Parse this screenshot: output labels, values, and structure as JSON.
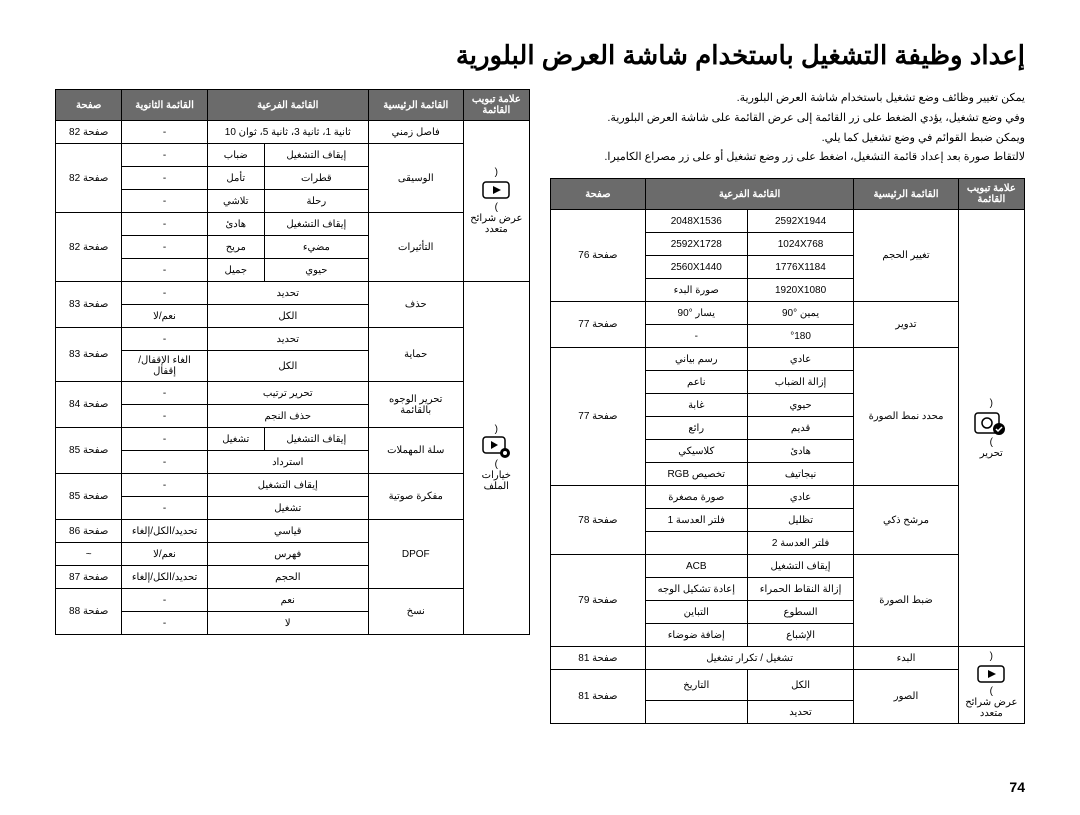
{
  "title": "إعداد وظيفة التشغيل باستخدام شاشة العرض البلورية",
  "intro": [
    "يمكن تغيير وظائف وضع تشغيل باستخدام شاشة العرض البلورية.",
    "وفي وضع تشغيل، يؤدي الضغط على زر القائمة إلى عرض القائمة على شاشة العرض البلورية.",
    "ويمكن ضبط القوائم في وضع تشغيل كما يلي.",
    "لالتقاط صورة بعد إعداد قائمة التشغيل، اضغط على زر وضع تشغيل أو على زر مصراع الكاميرا."
  ],
  "headers": {
    "tab": "علامة تبويب القائمة",
    "main": "القائمة الرئيسية",
    "sub": "القائمة الفرعية",
    "sec": "القائمة الثانوية",
    "page": "صفحة"
  },
  "rightTable": {
    "rows": [
      [
        "",
        "تغيير الحجم",
        "2592X1944",
        "2048X1536",
        ""
      ],
      [
        "",
        "",
        "1024X768",
        "2592X1728",
        ""
      ],
      [
        "",
        "",
        "1776X1184",
        "2560X1440",
        "صفحة 76"
      ],
      [
        "",
        "",
        "1920X1080",
        "صورة البدء",
        ""
      ],
      [
        "",
        "تدوير",
        "يمين °90",
        "يسار °90",
        "صفحة 77"
      ],
      [
        "",
        "",
        "°180",
        "-",
        ""
      ],
      [
        "تحرير",
        "محدد نمط الصورة",
        "عادي",
        "رسم بياني",
        ""
      ],
      [
        "",
        "",
        "إزالة الضباب",
        "ناعم",
        ""
      ],
      [
        "",
        "",
        "حيوي",
        "غابة",
        ""
      ],
      [
        "",
        "",
        "قديم",
        "رائع",
        "صفحة 77"
      ],
      [
        "",
        "",
        "هادئ",
        "كلاسيكي",
        ""
      ],
      [
        "",
        "",
        "نيجاتيف",
        "تخصيص RGB",
        ""
      ],
      [
        "",
        "مرشح ذكي",
        "عادي",
        "صورة مصغرة",
        ""
      ],
      [
        "",
        "",
        "تظليل",
        "فلتر العدسة 1",
        "صفحة 78"
      ],
      [
        "",
        "",
        "فلتر العدسة 2",
        "",
        ""
      ],
      [
        "",
        "ضبط الصورة",
        "إيقاف التشغيل",
        "ACB",
        ""
      ],
      [
        "",
        "",
        "إزالة النقاط الحمراء",
        "إعادة تشكيل الوجه",
        "صفحة 79"
      ],
      [
        "",
        "",
        "السطوع",
        "التباين",
        ""
      ],
      [
        "",
        "",
        "الإشباع",
        "إضافة ضوضاء",
        ""
      ],
      [
        "عرض شرائح متعدد",
        "البدء",
        "تشغيل / تكرار تشغيل",
        "-",
        "صفحة 81"
      ],
      [
        "",
        "الصور",
        "الكل",
        "التاريخ",
        "صفحة 81"
      ],
      [
        "",
        "",
        "تحديد",
        "",
        ""
      ]
    ]
  },
  "leftTable": {
    "rows": [
      [
        "",
        "فاصل زمني",
        "ثانية 1، ثانية 3، ثانية 5، ثوان 10",
        "-",
        "صفحة 82"
      ],
      [
        "",
        "",
        "إيقاف التشغيل",
        "ضباب",
        "-"
      ],
      [
        "عرض شرائح متعدد",
        "الوسيقى",
        "قطرات",
        "تأمل",
        "-"
      ],
      [
        "",
        "",
        "رحلة",
        "تلاشي",
        "-"
      ],
      [
        "",
        "",
        "إيقاف التشغيل",
        "هادئ",
        "-"
      ],
      [
        "",
        "التأثيرات",
        "مضيء",
        "مريح",
        "-"
      ],
      [
        "",
        "",
        "حيوي",
        "جميل",
        "-"
      ],
      [
        "",
        "حذف",
        "تحديد",
        "-",
        "صفحة 83"
      ],
      [
        "",
        "",
        "الكل",
        "نعم/لا",
        ""
      ],
      [
        "",
        "حماية",
        "تحديد",
        "-",
        "صفحة 83"
      ],
      [
        "",
        "",
        "الكل",
        "الغاء الإقفال/إقفال",
        ""
      ],
      [
        "خيارات الملف",
        "تحرير الوجوه بالقائمة",
        "تحرير ترتيب",
        "-",
        "صفحة 84"
      ],
      [
        "",
        "",
        "حذف النجم",
        "-",
        ""
      ],
      [
        "",
        "سلة المهملات",
        "إيقاف التشغيل",
        "تشغيل",
        "-"
      ],
      [
        "",
        "",
        "استرداد",
        "-",
        "صفحة 85"
      ],
      [
        "",
        "مفكرة صوتية",
        "إيقاف التشغيل",
        "-",
        "صفحة 85"
      ],
      [
        "",
        "",
        "تشغيل",
        "-",
        ""
      ],
      [
        "",
        "",
        "قياسي",
        "تحديد/الكل/إلغاء",
        "صفحة 86"
      ],
      [
        "",
        "DPOF",
        "فهرس",
        "نعم/لا",
        "~"
      ],
      [
        "",
        "",
        "الحجم",
        "تحديد/الكل/إلغاء",
        "صفحة 87"
      ],
      [
        "",
        "نسخ",
        "نعم",
        "-",
        "صفحة 88"
      ],
      [
        "",
        "",
        "لا",
        "-",
        ""
      ]
    ]
  },
  "pageNumber": "74"
}
